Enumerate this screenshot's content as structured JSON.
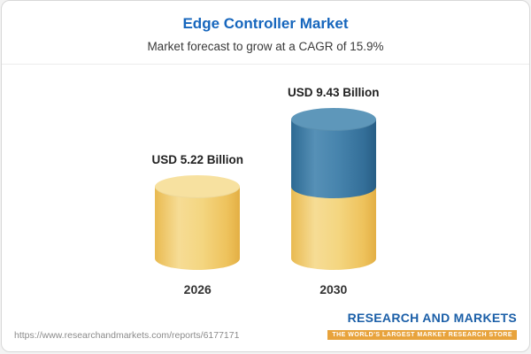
{
  "header": {
    "title": "Edge Controller Market",
    "subtitle": "Market forecast to grow at a CAGR of 15.9%"
  },
  "chart_data": {
    "type": "bar",
    "variant": "stacked-cylinder",
    "title": "Edge Controller Market",
    "subtitle": "Market forecast to grow at a CAGR of 15.9%",
    "unit": "USD Billion",
    "categories": [
      "2026",
      "2030"
    ],
    "values": [
      5.22,
      9.43
    ],
    "value_labels": [
      "USD 5.22 Billion",
      "USD 9.43 Billion"
    ],
    "series": [
      {
        "name": "base-market",
        "color": "#F2CE71",
        "values": [
          5.22,
          5.22
        ]
      },
      {
        "name": "forecast-growth",
        "color": "#3A76A0",
        "values": [
          0,
          4.21
        ]
      }
    ],
    "cagr_percent": 15.9,
    "ylim": [
      0,
      10
    ],
    "grid": false,
    "legend": "none"
  },
  "footer": {
    "url": "https://www.researchandmarkets.com/reports/6177171",
    "brand": "RESEARCH AND MARKETS",
    "tagline": "THE WORLD'S LARGEST MARKET RESEARCH STORE"
  },
  "colors": {
    "title_blue": "#1666bd",
    "bar_yellow": "#F2CE71",
    "bar_blue": "#3A76A0",
    "brand_blue": "#1b5fa8",
    "brand_gold": "#e8a33c"
  }
}
